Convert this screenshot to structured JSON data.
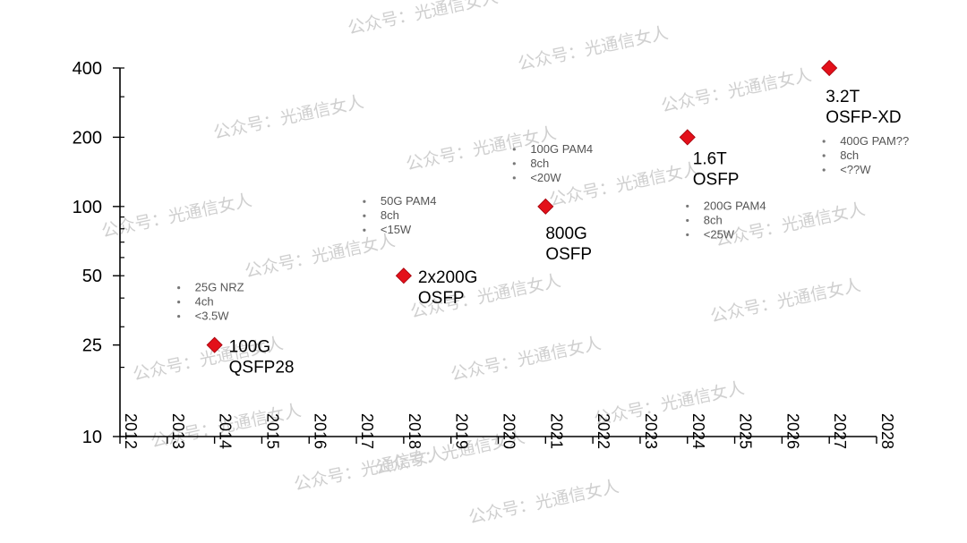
{
  "watermark": "公众号：光通信女人",
  "chart_data": {
    "type": "scatter",
    "title": "",
    "xlabel": "",
    "ylabel": "",
    "y_scale": "log",
    "xlim": [
      2012,
      2028
    ],
    "ylim": [
      10,
      400
    ],
    "x_ticks": [
      "2012",
      "2013",
      "2014",
      "2015",
      "2016",
      "2017",
      "2018",
      "2019",
      "2020",
      "2021",
      "2022",
      "2023",
      "2024",
      "2025",
      "2026",
      "2027",
      "2028"
    ],
    "y_ticks": [
      10,
      25,
      50,
      100,
      200,
      400
    ],
    "y_tick_labels": [
      "10",
      "25",
      "50",
      "100",
      "200",
      "400"
    ],
    "grid": false,
    "legend": "none",
    "marker": {
      "shape": "diamond",
      "color": "#e3101a"
    },
    "points": [
      {
        "x": 2014,
        "y": 25,
        "label": [
          "100G",
          "QSFP28"
        ],
        "specs": [
          "25G NRZ",
          "4ch",
          "<3.5W"
        ]
      },
      {
        "x": 2018,
        "y": 50,
        "label": [
          "2x200G",
          "OSFP"
        ],
        "specs": [
          "50G PAM4",
          "8ch",
          "<15W"
        ]
      },
      {
        "x": 2021,
        "y": 100,
        "label": [
          "800G",
          "OSFP"
        ],
        "specs": [
          "100G PAM4",
          "8ch",
          "<20W"
        ]
      },
      {
        "x": 2024,
        "y": 200,
        "label": [
          "1.6T",
          "OSFP"
        ],
        "specs": [
          "200G PAM4",
          "8ch",
          "<25W"
        ]
      },
      {
        "x": 2027,
        "y": 400,
        "label": [
          "3.2T",
          "OSFP-XD"
        ],
        "specs": [
          "400G PAM??",
          "8ch",
          "<??W"
        ]
      }
    ]
  }
}
